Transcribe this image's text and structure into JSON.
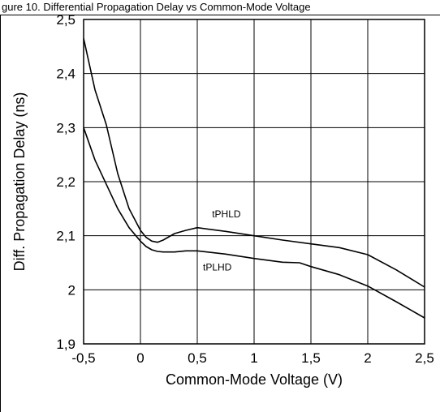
{
  "header_fragment": "gure 10. Differential Propagation Delay vs Common-Mode Voltage",
  "chart_data": {
    "type": "line",
    "xlabel": "Common-Mode Voltage (V)",
    "ylabel": "Diff. Propagation Delay  (ns)",
    "xlim": [
      -0.5,
      2.5
    ],
    "ylim": [
      1.9,
      2.5
    ],
    "x_ticks": [
      "-0,5",
      "0",
      "0,5",
      "1",
      "1,5",
      "2",
      "2,5"
    ],
    "y_ticks": [
      "1,9",
      "2",
      "2,1",
      "2,2",
      "2,3",
      "2,4",
      "2,5"
    ],
    "grid": true,
    "series": [
      {
        "name": "tPHLD",
        "x": [
          -0.5,
          -0.4,
          -0.3,
          -0.2,
          -0.1,
          0.0,
          0.05,
          0.1,
          0.15,
          0.2,
          0.3,
          0.4,
          0.5,
          0.75,
          1.0,
          1.25,
          1.5,
          1.75,
          2.0,
          2.25,
          2.5
        ],
        "y": [
          2.465,
          2.37,
          2.305,
          2.215,
          2.15,
          2.11,
          2.097,
          2.09,
          2.088,
          2.092,
          2.104,
          2.11,
          2.115,
          2.108,
          2.1,
          2.092,
          2.085,
          2.078,
          2.065,
          2.037,
          2.005
        ]
      },
      {
        "name": "tPLHD",
        "x": [
          -0.5,
          -0.4,
          -0.3,
          -0.2,
          -0.1,
          0.0,
          0.05,
          0.1,
          0.15,
          0.2,
          0.3,
          0.4,
          0.5,
          0.75,
          1.0,
          1.25,
          1.4,
          1.5,
          1.75,
          2.0,
          2.25,
          2.5
        ],
        "y": [
          2.3,
          2.24,
          2.195,
          2.15,
          2.115,
          2.09,
          2.08,
          2.074,
          2.071,
          2.07,
          2.07,
          2.072,
          2.072,
          2.066,
          2.058,
          2.051,
          2.05,
          2.043,
          2.028,
          2.007,
          1.978,
          1.948
        ]
      }
    ]
  }
}
